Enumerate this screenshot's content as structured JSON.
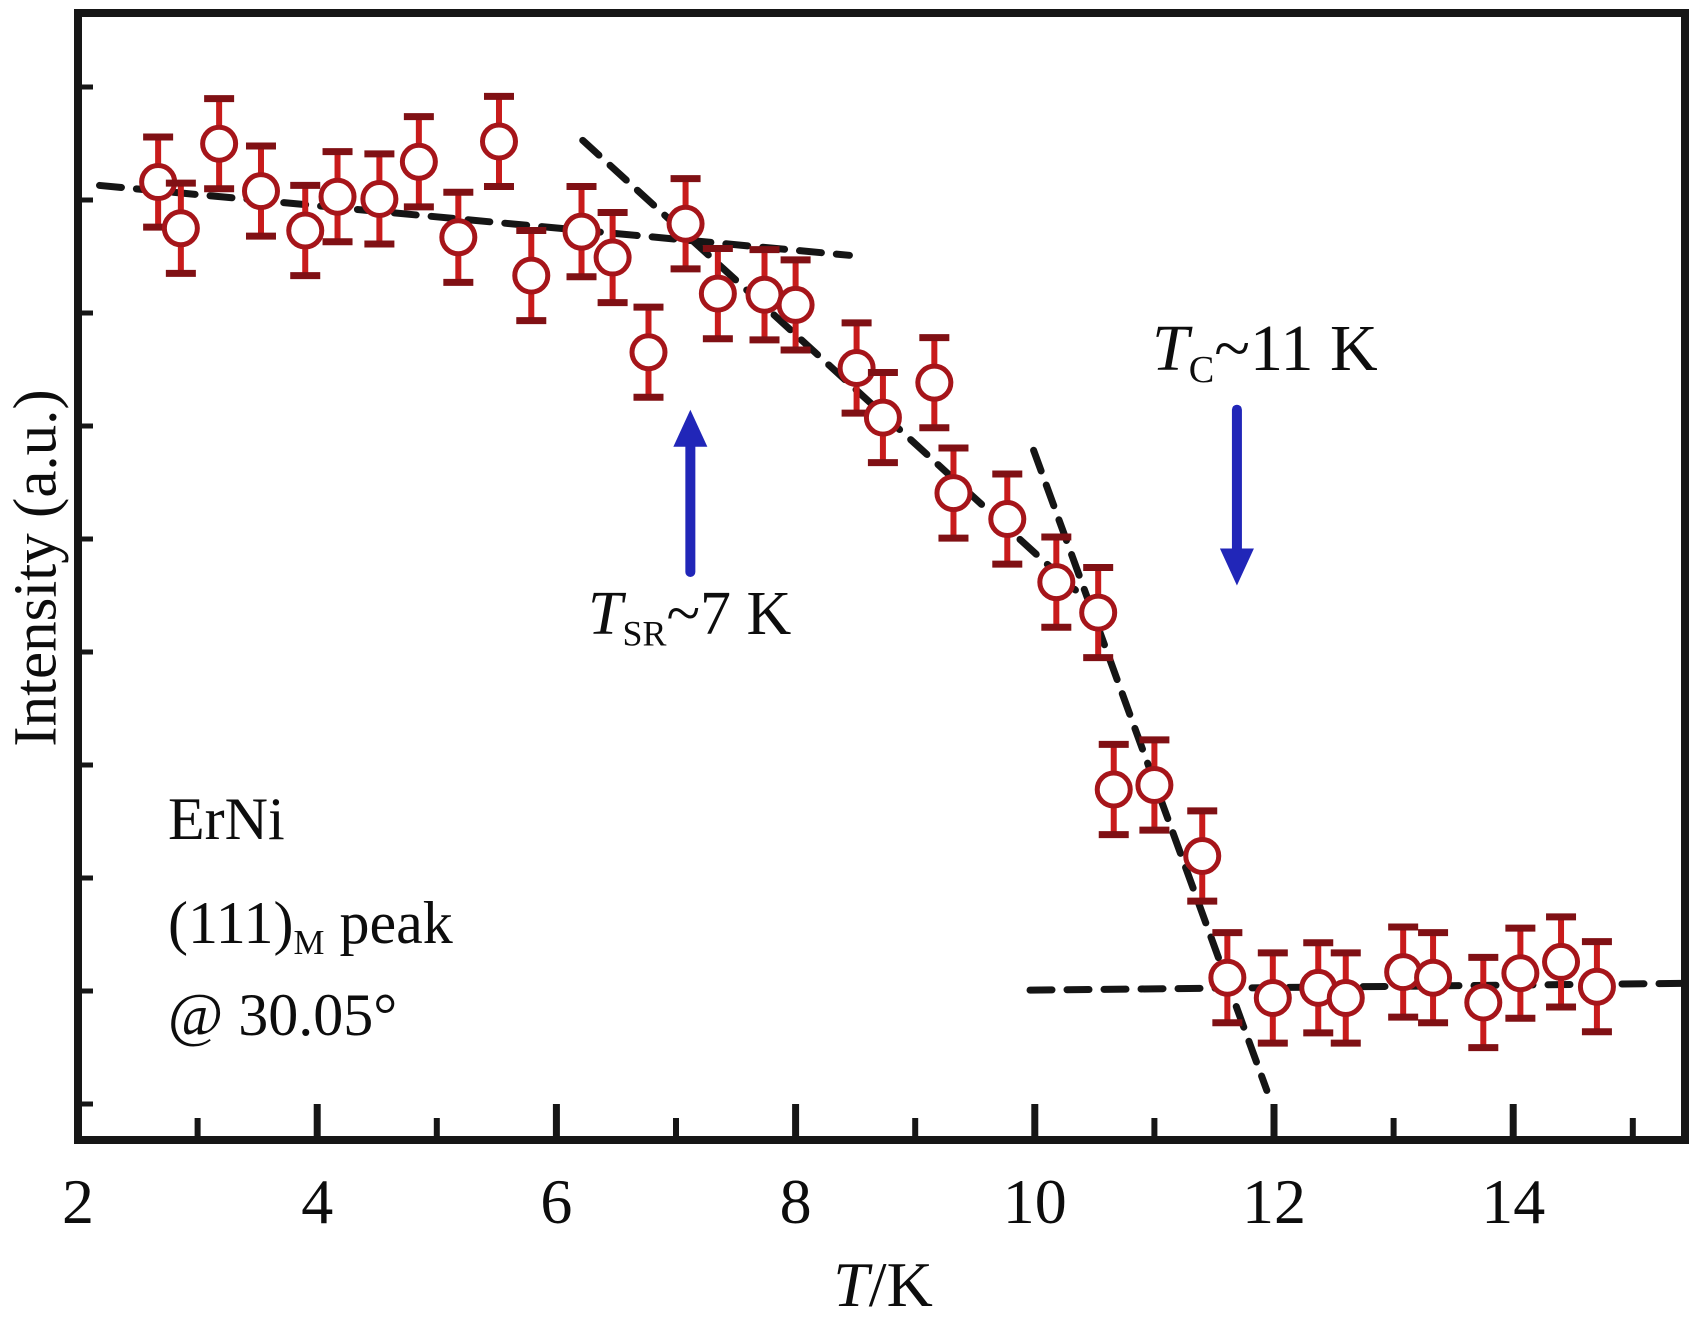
{
  "figure": {
    "background": "#ffffff",
    "frame_color": "#161616"
  },
  "annotations": {
    "ylabel": "Intensity (a.u.)",
    "xlabel_main": "T",
    "xlabel_rest": "/K",
    "sample": "ErNi",
    "peak_pre": "(111)",
    "peak_sub": "M",
    "peak_post": " peak",
    "angle": "@ 30.05°",
    "tsr_main": "T",
    "tsr_sub": "SR",
    "tsr_rest": "~7 K",
    "tc_main": "T",
    "tc_sub": "C",
    "tc_rest": "~11 K"
  },
  "chart_data": {
    "type": "scatter",
    "title": "",
    "xlabel": "T/K",
    "ylabel": "Intensity (a.u.)",
    "xlim": [
      2,
      15.45
    ],
    "y_units": "arbitrary units (normalized 0-1 of plot height)",
    "grid": false,
    "legend": false,
    "x_ticks_labeled": [
      2,
      4,
      6,
      8,
      10,
      12,
      14
    ],
    "x_ticks_minor": [
      3,
      5,
      7,
      9,
      11,
      13,
      15
    ],
    "series": [
      {
        "name": "(111)M magnetic peak intensity",
        "marker": "open-circle",
        "marker_color": "#a6151a",
        "error_bar_color": "#c81b1b",
        "error_cap_color": "#801014",
        "y_error": 0.04,
        "points": [
          {
            "t": 2.67,
            "i": 0.85
          },
          {
            "t": 2.86,
            "i": 0.809
          },
          {
            "t": 3.18,
            "i": 0.884
          },
          {
            "t": 3.53,
            "i": 0.842
          },
          {
            "t": 3.9,
            "i": 0.807
          },
          {
            "t": 4.17,
            "i": 0.837
          },
          {
            "t": 4.52,
            "i": 0.835
          },
          {
            "t": 4.85,
            "i": 0.868
          },
          {
            "t": 5.18,
            "i": 0.801
          },
          {
            "t": 5.52,
            "i": 0.886
          },
          {
            "t": 5.79,
            "i": 0.767
          },
          {
            "t": 6.21,
            "i": 0.806
          },
          {
            "t": 6.47,
            "i": 0.783
          },
          {
            "t": 6.77,
            "i": 0.699
          },
          {
            "t": 7.08,
            "i": 0.813
          },
          {
            "t": 7.35,
            "i": 0.751
          },
          {
            "t": 7.74,
            "i": 0.75
          },
          {
            "t": 8.0,
            "i": 0.741
          },
          {
            "t": 8.51,
            "i": 0.685
          },
          {
            "t": 8.73,
            "i": 0.641
          },
          {
            "t": 9.16,
            "i": 0.672
          },
          {
            "t": 9.32,
            "i": 0.574
          },
          {
            "t": 9.77,
            "i": 0.551
          },
          {
            "t": 10.18,
            "i": 0.495
          },
          {
            "t": 10.53,
            "i": 0.468
          },
          {
            "t": 10.66,
            "i": 0.311
          },
          {
            "t": 11.0,
            "i": 0.315
          },
          {
            "t": 11.4,
            "i": 0.252
          },
          {
            "t": 11.61,
            "i": 0.144
          },
          {
            "t": 11.99,
            "i": 0.126
          },
          {
            "t": 12.37,
            "i": 0.135
          },
          {
            "t": 12.6,
            "i": 0.126
          },
          {
            "t": 13.08,
            "i": 0.149
          },
          {
            "t": 13.33,
            "i": 0.144
          },
          {
            "t": 13.75,
            "i": 0.122
          },
          {
            "t": 14.06,
            "i": 0.148
          },
          {
            "t": 14.4,
            "i": 0.158
          },
          {
            "t": 14.7,
            "i": 0.136
          }
        ]
      }
    ],
    "fit_lines": [
      {
        "name": "low-T plateau linear fit",
        "color": "#151515",
        "t1": 2.18,
        "i1": 0.847,
        "t2": 8.45,
        "i2": 0.785
      },
      {
        "name": "intermediate linear fit",
        "color": "#151515",
        "t1": 6.22,
        "i1": 0.887,
        "t2": 10.34,
        "i2": 0.488
      },
      {
        "name": "transition linear fit",
        "color": "#151515",
        "t1": 9.99,
        "i1": 0.612,
        "t2": 11.94,
        "i2": 0.044
      },
      {
        "name": "high-T baseline fit",
        "color": "#151515",
        "t1": 9.96,
        "i1": 0.133,
        "t2": 15.44,
        "i2": 0.139
      }
    ],
    "arrows": [
      {
        "name": "tsr-arrow",
        "direction": "up",
        "t": 7.12,
        "i_tail": 0.504,
        "i_tip": 0.648,
        "color": "#2126b8"
      },
      {
        "name": "tc-arrow",
        "direction": "down",
        "t": 11.69,
        "i_tail": 0.648,
        "i_tip": 0.492,
        "color": "#2126b8"
      }
    ],
    "transitions": [
      {
        "name": "spin-reorientation",
        "label": "T_SR ~ 7 K",
        "temperature_K": 7
      },
      {
        "name": "magnetic-ordering",
        "label": "T_C ~ 11 K",
        "temperature_K": 11
      }
    ]
  }
}
